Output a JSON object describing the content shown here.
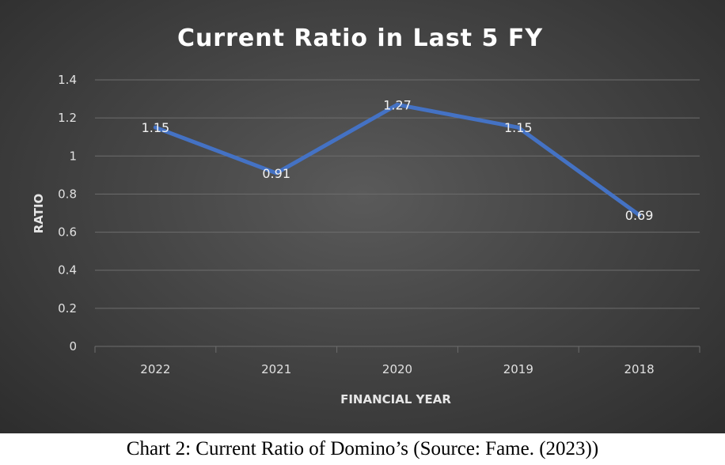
{
  "chart_data": {
    "type": "line",
    "title": "Current Ratio in Last 5 FY",
    "xlabel": "FINANCIAL YEAR",
    "ylabel": "RATIO",
    "categories": [
      "2022",
      "2021",
      "2020",
      "2019",
      "2018"
    ],
    "values": [
      1.15,
      0.91,
      1.27,
      1.15,
      0.69
    ],
    "data_labels": [
      "1.15",
      "0.91",
      "1.27",
      "1.15",
      "0.69"
    ],
    "yticks": [
      "0",
      "0.2",
      "0.4",
      "0.6",
      "0.8",
      "1",
      "1.2",
      "1.4"
    ],
    "ylim": [
      0,
      1.4
    ],
    "grid": true,
    "legend": "none",
    "line_color": "#4472c4"
  },
  "caption": "Chart 2: Current Ratio of Domino’s (Source: Fame. (2023))"
}
